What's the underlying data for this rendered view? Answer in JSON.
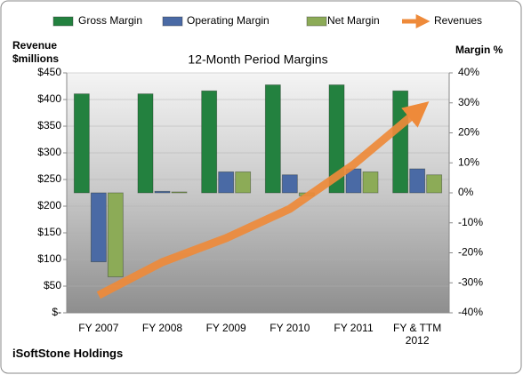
{
  "chart_data": {
    "type": "bar",
    "title": "12-Month Period Margins",
    "y_label": "Revenue $millions",
    "y2_label": "Margin %",
    "footer": "iSoftStone Holdings",
    "categories": [
      "FY 2007",
      "FY 2008",
      "FY 2009",
      "FY 2010",
      "FY 2011",
      "FY & TTM 2012"
    ],
    "series": [
      {
        "name": "Gross Margin",
        "color": "#23813f",
        "axis": "y2",
        "values": [
          33,
          33,
          34,
          36,
          36,
          34
        ]
      },
      {
        "name": "Operating Margin",
        "color": "#4a6aa5",
        "axis": "y2",
        "values": [
          -23,
          0.5,
          7,
          6,
          8,
          8
        ]
      },
      {
        "name": "Net Margin",
        "color": "#8cab57",
        "axis": "y2",
        "values": [
          -28,
          0.3,
          7,
          -1,
          7,
          6
        ]
      },
      {
        "name": "Revenues",
        "color": "#ee8a3a",
        "type": "line",
        "values": [
          33,
          95,
          140,
          195,
          278,
          378
        ]
      }
    ],
    "ylim": [
      0,
      450
    ],
    "yticks": [
      {
        "value": 0,
        "label": "$-"
      },
      {
        "value": 50,
        "label": "$50"
      },
      {
        "value": 100,
        "label": "$100"
      },
      {
        "value": 150,
        "label": "$150"
      },
      {
        "value": 200,
        "label": "$200"
      },
      {
        "value": 250,
        "label": "$250"
      },
      {
        "value": 300,
        "label": "$300"
      },
      {
        "value": 350,
        "label": "$350"
      },
      {
        "value": 400,
        "label": "$400"
      },
      {
        "value": 450,
        "label": "$450"
      }
    ],
    "y2lim": [
      -40,
      40
    ],
    "y2ticks": [
      {
        "value": -40,
        "label": "-40%"
      },
      {
        "value": -30,
        "label": "-30%"
      },
      {
        "value": -20,
        "label": "-20%"
      },
      {
        "value": -10,
        "label": "-10%"
      },
      {
        "value": 0,
        "label": "0%"
      },
      {
        "value": 10,
        "label": "10%"
      },
      {
        "value": 20,
        "label": "20%"
      },
      {
        "value": 30,
        "label": "30%"
      },
      {
        "value": 40,
        "label": "40%"
      }
    ],
    "grid": true,
    "legend": "top"
  }
}
